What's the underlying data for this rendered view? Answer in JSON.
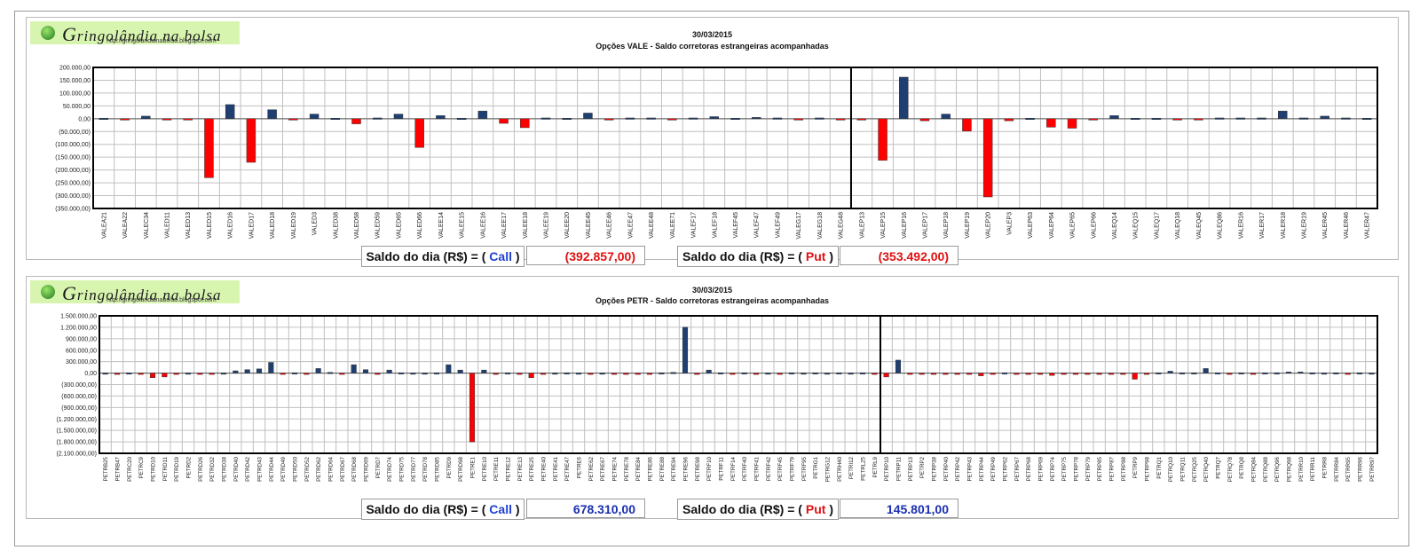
{
  "logo": {
    "name": "ringolândia na bolsa",
    "initial": "G",
    "url": "http://gringolandianabolsa.blogspot.com"
  },
  "panels": [
    {
      "date": "30/03/2015",
      "subtitle": "Opções VALE - Saldo corretoras estrangeiras acompanhadas",
      "summary": {
        "label_prefix": "Saldo do dia (R$) = (",
        "call_word": "Call",
        "put_word": "Put",
        "label_suffix": ")",
        "call_value": "(392.857,00)",
        "put_value": "(353.492,00)"
      }
    },
    {
      "date": "30/03/2015",
      "subtitle": "Opções PETR - Saldo corretoras estrangeiras acompanhadas",
      "summary": {
        "label_prefix": "Saldo do dia (R$) = (",
        "call_word": "Call",
        "put_word": "Put",
        "label_suffix": ")",
        "call_value": "678.310,00",
        "put_value": "145.801,00"
      }
    }
  ],
  "colors": {
    "positive": "#1f3f73",
    "negative": "#ff0000",
    "grid": "#c0c0c0"
  },
  "chart_data": [
    {
      "type": "bar",
      "title": "Opções VALE - Saldo corretoras estrangeiras acompanhadas",
      "ylim": [
        -350000,
        200000
      ],
      "ytick_step": 50000,
      "yticks": [
        "200.000,00",
        "150.000,00",
        "100.000,00",
        "50.000,00",
        "0,00",
        "(50.000,00)",
        "(100.000,00)",
        "(150.000,00)",
        "(200.000,00)",
        "(250.000,00)",
        "(300.000,00)",
        "(350.000,00)"
      ],
      "divider_after": "VALEG48",
      "categories": [
        "VALEA21",
        "VALEA22",
        "VALEC34",
        "VALED11",
        "VALED13",
        "VALED15",
        "VALED16",
        "VALED17",
        "VALED18",
        "VALED19",
        "VALED3",
        "VALED38",
        "VALED58",
        "VALED59",
        "VALED65",
        "VALED66",
        "VALEE14",
        "VALEE15",
        "VALEE16",
        "VALEE17",
        "VALEE18",
        "VALEE19",
        "VALEE20",
        "VALEE45",
        "VALEE46",
        "VALEE47",
        "VALEE48",
        "VALEE71",
        "VALEF17",
        "VALEF18",
        "VALEF45",
        "VALEF47",
        "VALEF49",
        "VALEG17",
        "VALEG18",
        "VALEG48",
        "VALEP13",
        "VALEP15",
        "VALEP16",
        "VALEP17",
        "VALEP18",
        "VALEP19",
        "VALEP20",
        "VALEP3",
        "VALEP63",
        "VALEP64",
        "VALEP65",
        "VALEP66",
        "VALEQ14",
        "VALEQ15",
        "VALEQ17",
        "VALEQ18",
        "VALEQ45",
        "VALEQ86",
        "VALER16",
        "VALER17",
        "VALER18",
        "VALER19",
        "VALER45",
        "VALER46",
        "VALER47"
      ],
      "values": [
        2000,
        -4000,
        10000,
        -4000,
        -3000,
        -230000,
        55000,
        -170000,
        35000,
        -5000,
        18000,
        2000,
        -20000,
        3000,
        18000,
        -112000,
        12000,
        2000,
        30000,
        -18000,
        -35000,
        3000,
        2000,
        22000,
        -4000,
        3000,
        3000,
        -2000,
        3000,
        8000,
        2000,
        5000,
        3000,
        -2000,
        3000,
        -2000,
        -2000,
        -162000,
        162000,
        -8000,
        18000,
        -48000,
        -305000,
        -8000,
        2000,
        -33000,
        -37000,
        -4000,
        12000,
        2000,
        2000,
        -2000,
        -2000,
        3000,
        3000,
        3000,
        30000,
        3000,
        10000,
        3000,
        2000
      ]
    },
    {
      "type": "bar",
      "title": "Opções PETR - Saldo corretoras estrangeiras acompanhadas",
      "ylim": [
        -2100000,
        1500000
      ],
      "ytick_step": 300000,
      "yticks": [
        "1.500.000,00",
        "1.200.000,00",
        "900.000,00",
        "600.000,00",
        "300.000,00",
        "0,00",
        "(300.000,00)",
        "(600.000,00)",
        "(900.000,00)",
        "(1.200.000,00)",
        "(1.500.000,00)",
        "(1.800.000,00)",
        "(2.100.000,00)"
      ],
      "divider_after": "PETRL9",
      "categories": [
        "PETRB25",
        "PETRB47",
        "PETRC20",
        "PETRC9",
        "PETRD10",
        "PETRD11",
        "PETRD19",
        "PETRD2",
        "PETRD26",
        "PETRD32",
        "PETRD38",
        "PETRD40",
        "PETRD42",
        "PETRD43",
        "PETRD44",
        "PETRD49",
        "PETRD50",
        "PETRD52",
        "PETRD62",
        "PETRD64",
        "PETRD67",
        "PETRD68",
        "PETRD69",
        "PETRD7",
        "PETRD74",
        "PETRD75",
        "PETRD77",
        "PETRD78",
        "PETRD85",
        "PETRD9",
        "PETRD98",
        "PETRE1",
        "PETRE10",
        "PETRE11",
        "PETRE12",
        "PETRE13",
        "PETRE25",
        "PETRE40",
        "PETRE41",
        "PETRE47",
        "PETRE6",
        "PETRE62",
        "PETRE67",
        "PETRE74",
        "PETRE78",
        "PETRE84",
        "PETRE86",
        "PETRE88",
        "PETRE94",
        "PETRE96",
        "PETRE98",
        "PETRF10",
        "PETRF11",
        "PETRF14",
        "PETRF40",
        "PETRF41",
        "PETRF42",
        "PETRF45",
        "PETRF79",
        "PETRF95",
        "PETRG1",
        "PETRG12",
        "PETRH40",
        "PETRI12",
        "PETRL25",
        "PETRL9",
        "PETRP10",
        "PETRP11",
        "PETRP13",
        "PETRP2",
        "PETRP38",
        "PETRP40",
        "PETRP42",
        "PETRP43",
        "PETRP44",
        "PETRP49",
        "PETRP62",
        "PETRP67",
        "PETRP68",
        "PETRP69",
        "PETRP74",
        "PETRP75",
        "PETRP78",
        "PETRP79",
        "PETRP85",
        "PETRP87",
        "PETRP88",
        "PETRP9",
        "PETRP98",
        "PETRQ1",
        "PETRQ10",
        "PETRQ11",
        "PETRQ25",
        "PETRQ40",
        "PETRQ7",
        "PETRQ78",
        "PETRQ8",
        "PETRQ84",
        "PETRQ88",
        "PETRQ96",
        "PETRQ98",
        "PETRR10",
        "PETRR11",
        "PETRR8",
        "PETRR84",
        "PETRR95",
        "PETRR96",
        "PETRR97"
      ],
      "values": [
        5000,
        -10000,
        8000,
        -20000,
        -120000,
        -100000,
        -30000,
        5000,
        -10000,
        -15000,
        5000,
        60000,
        90000,
        110000,
        280000,
        -10000,
        10000,
        -10000,
        120000,
        20000,
        -10000,
        220000,
        90000,
        -10000,
        80000,
        10000,
        5000,
        5000,
        10000,
        220000,
        80000,
        -1800000,
        80000,
        -10000,
        10000,
        -10000,
        -120000,
        -10000,
        5000,
        10000,
        5000,
        -10000,
        5000,
        -20000,
        -30000,
        -20000,
        -10000,
        10000,
        20000,
        1200000,
        -10000,
        80000,
        10000,
        -10000,
        10000,
        -10000,
        5000,
        -10000,
        10000,
        5000,
        10000,
        5000,
        10000,
        5000,
        10000,
        -10000,
        -100000,
        340000,
        -20000,
        -10000,
        -10000,
        -30000,
        -30000,
        -30000,
        -70000,
        -10000,
        10000,
        -10000,
        -10000,
        -10000,
        -60000,
        -10000,
        -10000,
        -10000,
        -10000,
        -10000,
        -20000,
        -160000,
        -10000,
        10000,
        50000,
        10000,
        10000,
        120000,
        10000,
        -10000,
        10000,
        -10000,
        10000,
        10000,
        30000,
        30000,
        10000,
        5000,
        10000,
        -10000,
        10000,
        5000
      ]
    }
  ]
}
